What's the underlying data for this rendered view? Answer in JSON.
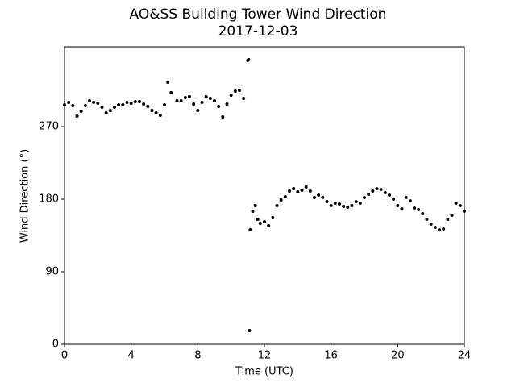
{
  "chart_data": {
    "type": "scatter",
    "title": "AO&SS Building Tower Wind Direction",
    "subtitle": "2017-12-03",
    "x_label": "Time (UTC)",
    "y_label": "Wind Direction (°)",
    "color": "#000000",
    "xlim": [
      0,
      24
    ],
    "ylim": [
      0,
      369
    ],
    "xticks": [
      0,
      4,
      8,
      12,
      16,
      20,
      24
    ],
    "yticks": [
      0,
      90,
      180,
      270
    ],
    "x": [
      0,
      0.25,
      0.5,
      0.75,
      1,
      1.25,
      1.5,
      1.75,
      2,
      2.25,
      2.5,
      2.75,
      3,
      3.25,
      3.5,
      3.75,
      4,
      4.25,
      4.5,
      4.75,
      5,
      5.25,
      5.5,
      5.75,
      6,
      6.2,
      6.4,
      6.75,
      7,
      7.25,
      7.5,
      7.75,
      8,
      8.25,
      8.5,
      8.75,
      9,
      9.25,
      9.5,
      9.75,
      10,
      10.25,
      10.5,
      10.75,
      11,
      11.05,
      11.1,
      11.15,
      11.3,
      11.45,
      11.6,
      11.75,
      12,
      12.25,
      12.5,
      12.75,
      13,
      13.25,
      13.5,
      13.75,
      14,
      14.25,
      14.5,
      14.75,
      15,
      15.25,
      15.5,
      15.75,
      16,
      16.25,
      16.5,
      16.75,
      17,
      17.25,
      17.5,
      17.75,
      18,
      18.25,
      18.5,
      18.75,
      19,
      19.25,
      19.5,
      19.75,
      20,
      20.25,
      20.5,
      20.75,
      21,
      21.25,
      21.5,
      21.75,
      22,
      22.25,
      22.5,
      22.75,
      23,
      23.25,
      23.5,
      23.75,
      24
    ],
    "values": [
      297,
      300,
      296,
      283,
      289,
      296,
      302,
      300,
      299,
      294,
      287,
      290,
      294,
      297,
      297,
      300,
      299,
      301,
      301,
      298,
      295,
      290,
      287,
      284,
      297,
      325,
      312,
      302,
      302,
      306,
      307,
      298,
      290,
      300,
      307,
      305,
      302,
      295,
      282,
      298,
      309,
      314,
      315,
      305,
      352,
      353,
      17,
      142,
      165,
      172,
      155,
      150,
      152,
      147,
      157,
      172,
      179,
      183,
      190,
      193,
      189,
      191,
      195,
      190,
      182,
      185,
      182,
      177,
      172,
      175,
      174,
      171,
      170,
      172,
      177,
      175,
      182,
      186,
      190,
      193,
      192,
      188,
      185,
      180,
      172,
      168,
      182,
      178,
      169,
      167,
      162,
      155,
      149,
      145,
      142,
      143,
      155,
      160,
      175,
      172,
      165
    ]
  }
}
